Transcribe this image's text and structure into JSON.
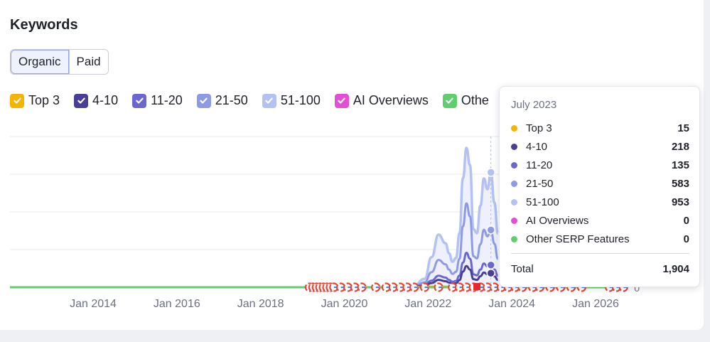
{
  "header": {
    "title": "Keywords"
  },
  "tabs": [
    {
      "label": "Organic",
      "active": true
    },
    {
      "label": "Paid",
      "active": false
    }
  ],
  "legend": [
    {
      "label": "Top 3",
      "color": "#f5b400"
    },
    {
      "label": "4-10",
      "color": "#4a3f96"
    },
    {
      "label": "11-20",
      "color": "#6a68d0"
    },
    {
      "label": "21-50",
      "color": "#8d9be6"
    },
    {
      "label": "51-100",
      "color": "#b4c1f4"
    },
    {
      "label": "AI Overviews",
      "color": "#e24fd6"
    },
    {
      "label": "Othe",
      "color": "#5fcf6e"
    }
  ],
  "tooltip": {
    "date": "July 2023",
    "rows": [
      {
        "label": "Top 3",
        "value": "15",
        "color": "#f5b400"
      },
      {
        "label": "4-10",
        "value": "218",
        "color": "#4a3f96"
      },
      {
        "label": "11-20",
        "value": "135",
        "color": "#6a68d0"
      },
      {
        "label": "21-50",
        "value": "583",
        "color": "#8d9be6"
      },
      {
        "label": "51-100",
        "value": "953",
        "color": "#b4c1f4"
      },
      {
        "label": "AI Overviews",
        "value": "0",
        "color": "#e24fd6"
      },
      {
        "label": "Other SERP Features",
        "value": "0",
        "color": "#5fcf6e"
      }
    ],
    "total_label": "Total",
    "total_value": "1,904"
  },
  "chart_data": {
    "type": "area",
    "x_tick_labels": [
      "Jan 2014",
      "Jan 2016",
      "Jan 2018",
      "Jan 2020",
      "Jan 2022",
      "Jan 2024",
      "Jan 2026"
    ],
    "y_tick_labels": [
      "0"
    ],
    "ylim": [
      0,
      2500
    ],
    "grid": true,
    "stacked": true,
    "x": [
      "2021-06",
      "2021-09",
      "2021-12",
      "2022-02",
      "2022-04",
      "2022-06",
      "2022-07",
      "2022-08",
      "2022-09",
      "2022-10",
      "2022-11",
      "2022-12",
      "2023-01",
      "2023-02",
      "2023-03",
      "2023-04",
      "2023-05",
      "2023-06",
      "2023-07",
      "2023-08",
      "2023-09"
    ],
    "series": [
      {
        "name": "Top 3",
        "color": "#f5b400",
        "values": [
          0,
          2,
          5,
          10,
          12,
          10,
          8,
          6,
          6,
          8,
          10,
          12,
          14,
          14,
          12,
          13,
          14,
          15,
          15,
          13,
          10
        ]
      },
      {
        "name": "4-10",
        "color": "#4a3f96",
        "values": [
          0,
          5,
          20,
          60,
          110,
          90,
          70,
          50,
          60,
          110,
          250,
          340,
          280,
          120,
          110,
          170,
          230,
          200,
          218,
          170,
          110
        ]
      },
      {
        "name": "11-20",
        "color": "#6a68d0",
        "values": [
          0,
          3,
          15,
          40,
          70,
          60,
          45,
          35,
          40,
          75,
          150,
          220,
          180,
          80,
          75,
          110,
          150,
          130,
          135,
          110,
          70
        ]
      },
      {
        "name": "21-50",
        "color": "#8d9be6",
        "values": [
          0,
          10,
          40,
          140,
          260,
          220,
          170,
          130,
          150,
          280,
          600,
          820,
          700,
          300,
          280,
          420,
          560,
          500,
          583,
          430,
          280
        ]
      },
      {
        "name": "51-100",
        "color": "#b4c1f4",
        "values": [
          0,
          15,
          60,
          250,
          420,
          350,
          270,
          200,
          230,
          420,
          800,
          920,
          850,
          450,
          420,
          640,
          850,
          780,
          953,
          680,
          420
        ]
      },
      {
        "name": "AI Overviews",
        "color": "#e24fd6",
        "values": [
          0,
          0,
          0,
          0,
          0,
          0,
          0,
          0,
          0,
          0,
          0,
          0,
          0,
          0,
          0,
          0,
          0,
          0,
          0,
          0,
          0
        ]
      },
      {
        "name": "Other SERP Features",
        "color": "#5fcf6e",
        "values": [
          0,
          0,
          0,
          0,
          0,
          0,
          0,
          0,
          0,
          0,
          0,
          0,
          0,
          0,
          0,
          0,
          0,
          0,
          0,
          0,
          0
        ]
      }
    ],
    "highlight_x": "2023-07",
    "events": [
      "2019-03",
      "2019-04",
      "2019-05",
      "2019-06",
      "2019-07",
      "2019-08",
      "2019-09",
      "2019-10",
      "2019-12",
      "2020-02",
      "2020-04",
      "2020-06",
      "2020-10",
      "2021-01",
      "2021-03",
      "2021-05",
      "2021-07",
      "2021-09",
      "2021-12",
      "2022-04",
      "2022-08",
      "2022-10",
      "2022-12",
      "2023-02",
      "2023-04",
      "2023-06",
      "2023-08",
      "2023-10",
      "2023-12",
      "2024-02",
      "2024-04",
      "2024-07",
      "2024-09",
      "2024-12",
      "2025-03",
      "2025-06",
      "2025-09",
      "2026-05",
      "2026-07",
      "2026-09"
    ]
  }
}
